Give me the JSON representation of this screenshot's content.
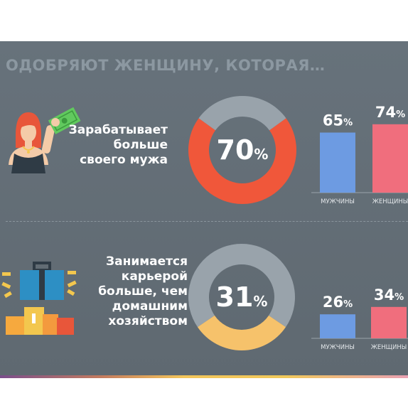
{
  "title": "ОДОБРЯЮТ ЖЕНЩИНУ, КОТОРАЯ…",
  "sections": [
    {
      "label_lines": [
        "Зарабатывает",
        "больше",
        "своего мужа"
      ]
    },
    {
      "label_lines": [
        "Занимается",
        "карьерой",
        "больше, чем",
        "домашним",
        "хозяйством"
      ]
    }
  ],
  "colors": {
    "background": "#626c74",
    "donut_track": "#99a3ab",
    "donut1_fill": "#f0573a",
    "donut2_fill": "#f6c26b",
    "bar_men": "#6d9be2",
    "bar_women": "#f06e7d"
  },
  "icons": [
    "woman-with-money-icon",
    "briefcase-podium-icon"
  ],
  "chart_data": [
    {
      "type": "pie",
      "center_label": "70%",
      "values": [
        70,
        30
      ]
    },
    {
      "type": "bar",
      "categories": [
        "МУЖЧИНЫ",
        "ЖЕНЩИНЫ"
      ],
      "values": [
        65,
        74
      ],
      "value_labels": [
        "65%",
        "74%"
      ],
      "ylim": [
        0,
        100
      ]
    },
    {
      "type": "pie",
      "center_label": "31%",
      "values": [
        31,
        69
      ]
    },
    {
      "type": "bar",
      "categories": [
        "МУЖЧИНЫ",
        "ЖЕНЩИНЫ"
      ],
      "values": [
        26,
        34
      ],
      "value_labels": [
        "26%",
        "34%"
      ],
      "ylim": [
        0,
        100
      ]
    }
  ]
}
